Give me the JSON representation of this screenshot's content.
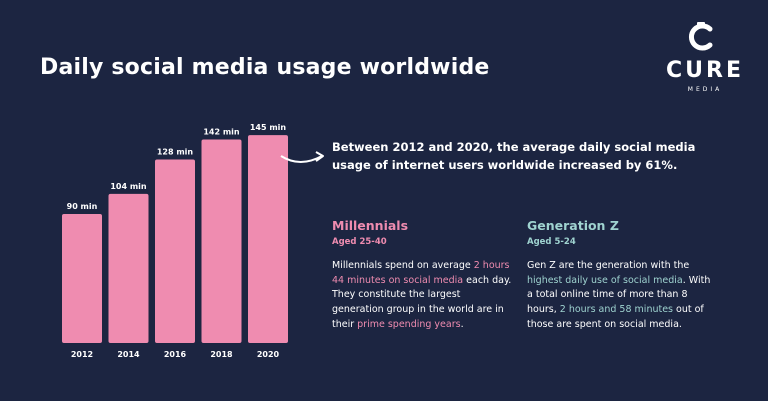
{
  "title": "Daily social media usage worldwide",
  "logo": {
    "word": "CURE",
    "sub": "MEDIA"
  },
  "headline": "Between 2012 and 2020, the average daily social media usage of internet users worldwide increased by 61%.",
  "chart_data": {
    "type": "bar",
    "categories": [
      "2012",
      "2014",
      "2016",
      "2018",
      "2020"
    ],
    "values": [
      90,
      104,
      128,
      142,
      145
    ],
    "data_labels": [
      "90 min",
      "104 min",
      "128 min",
      "142 min",
      "145 min"
    ],
    "title": "Daily social media usage worldwide",
    "xlabel": "",
    "ylabel": "",
    "ylim": [
      0,
      150
    ],
    "grid": false,
    "bar_color": "#ef8cb0"
  },
  "millennials": {
    "heading": "Millennials",
    "age": "Aged 25-40",
    "text_1": "Millennials spend on average ",
    "highlight_1": "2 hours 44 minutes on social media",
    "text_2": " each day. They constitute the largest generation group in the world are in their ",
    "highlight_2": "prime spending years",
    "text_3": "."
  },
  "genz": {
    "heading": "Generation Z",
    "age": "Aged 5-24",
    "text_1": "Gen Z are the generation with the ",
    "highlight_1": "highest daily use of social media",
    "text_2": ". With a total online time of more than 8 hours, ",
    "highlight_2": "2 hours and 58 minutes",
    "text_3": " out of those are spent on social media."
  },
  "colors": {
    "background": "#1c2541",
    "pink": "#ef8cb0",
    "teal": "#9fd3d0"
  }
}
